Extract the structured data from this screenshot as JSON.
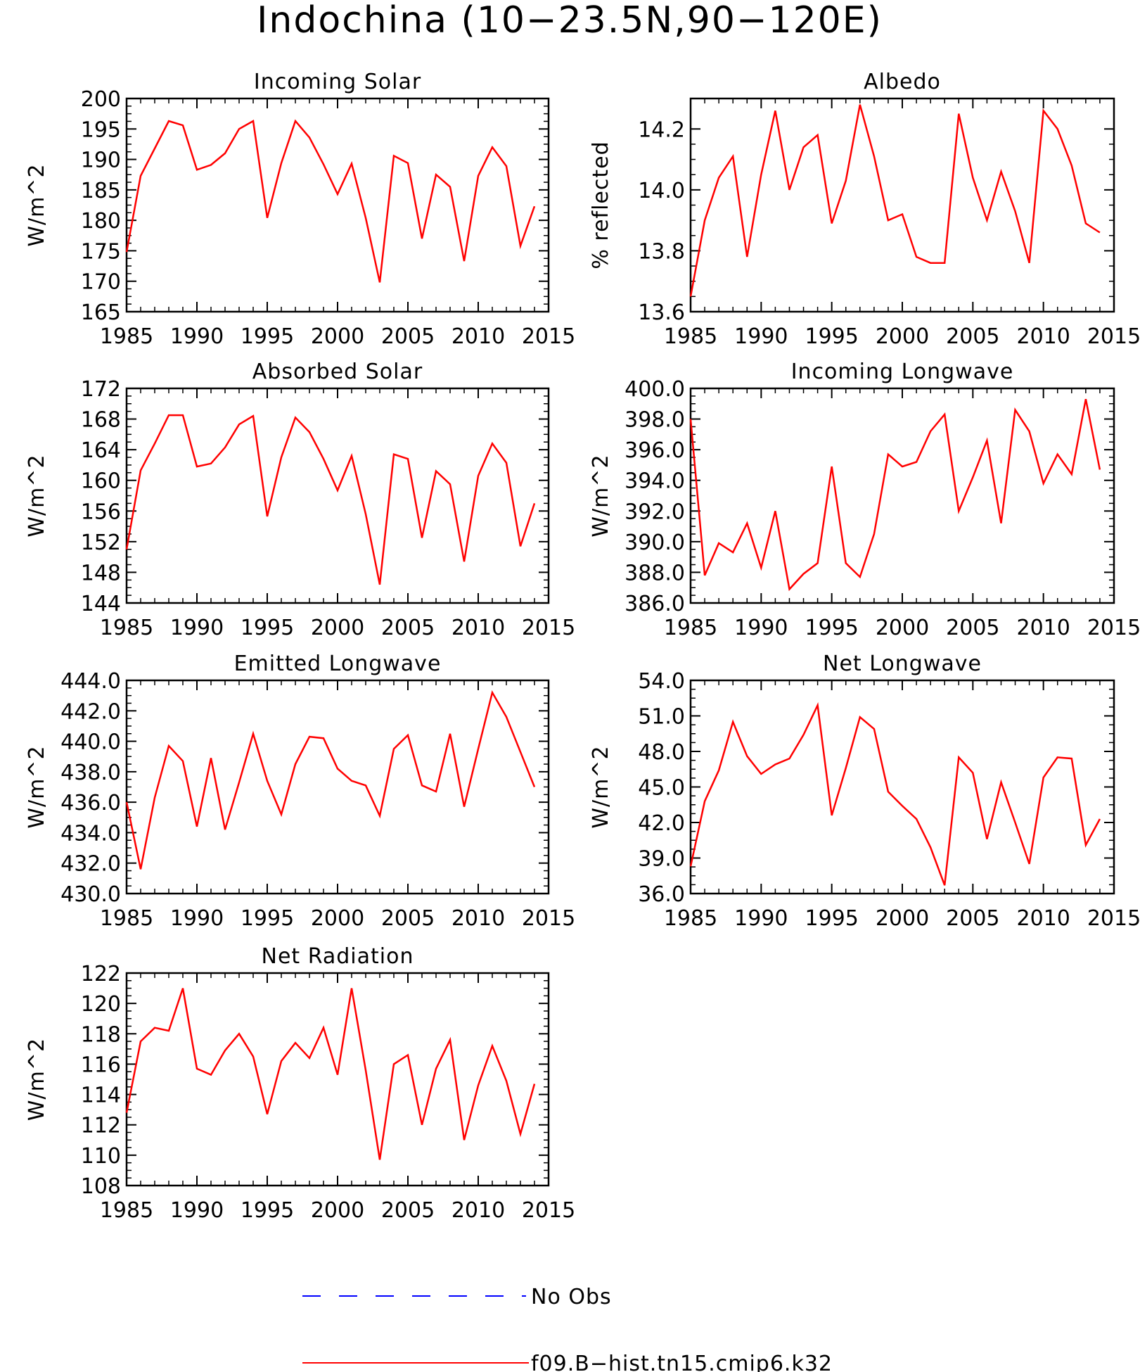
{
  "figure_title": "Indochina (10−23.5N,90−120E)",
  "legend": [
    {
      "label": "No Obs",
      "color": "#0000ff",
      "dashed": true
    },
    {
      "label": "f09.B−hist.tn15.cmip6.k32",
      "color": "#ff0000",
      "dashed": false
    }
  ],
  "chart_data": [
    {
      "type": "line",
      "title": "Incoming Solar",
      "ylabel": "W/m^2",
      "xlim": [
        1985,
        2015
      ],
      "ylim": [
        165,
        200
      ],
      "xticks": [
        1985,
        1990,
        1995,
        2000,
        2005,
        2010,
        2015
      ],
      "yticks": [
        165,
        170,
        175,
        180,
        185,
        190,
        195,
        200
      ],
      "ydecimals": 0,
      "series": [
        {
          "color": "#ff0000",
          "x": [
            1985,
            1986,
            1987,
            1988,
            1989,
            1990,
            1991,
            1992,
            1993,
            1994,
            1995,
            1996,
            1997,
            1998,
            1999,
            2000,
            2001,
            2002,
            2003,
            2004,
            2005,
            2006,
            2007,
            2008,
            2009,
            2010,
            2011,
            2012,
            2013,
            2014
          ],
          "values": [
            174.8,
            187.3,
            191.8,
            196.3,
            195.6,
            188.3,
            189.1,
            191.0,
            195.0,
            196.3,
            180.4,
            189.4,
            196.3,
            193.6,
            189.2,
            184.3,
            189.3,
            180.4,
            169.8,
            190.6,
            189.4,
            177.0,
            187.5,
            185.5,
            173.3,
            187.3,
            192.0,
            188.9,
            175.8,
            182.3
          ]
        }
      ]
    },
    {
      "type": "line",
      "title": "Albedo",
      "ylabel": "% reflected",
      "xlim": [
        1985,
        2015
      ],
      "ylim": [
        13.6,
        14.3
      ],
      "xticks": [
        1985,
        1990,
        1995,
        2000,
        2005,
        2010,
        2015
      ],
      "yticks": [
        13.6,
        13.8,
        14.0,
        14.2
      ],
      "ydecimals": 1,
      "series": [
        {
          "color": "#ff0000",
          "x": [
            1985,
            1986,
            1987,
            1988,
            1989,
            1990,
            1991,
            1992,
            1993,
            1994,
            1995,
            1996,
            1997,
            1998,
            1999,
            2000,
            2001,
            2002,
            2003,
            2004,
            2005,
            2006,
            2007,
            2008,
            2009,
            2010,
            2011,
            2012,
            2013,
            2014
          ],
          "values": [
            13.65,
            13.9,
            14.04,
            14.11,
            13.78,
            14.05,
            14.26,
            14.0,
            14.14,
            14.18,
            13.89,
            14.03,
            14.28,
            14.11,
            13.9,
            13.92,
            13.78,
            13.76,
            13.76,
            14.25,
            14.04,
            13.9,
            14.06,
            13.93,
            13.76,
            14.26,
            14.2,
            14.08,
            13.89,
            13.86
          ]
        }
      ]
    },
    {
      "type": "line",
      "title": "Absorbed Solar",
      "ylabel": "W/m^2",
      "xlim": [
        1985,
        2015
      ],
      "ylim": [
        144,
        172
      ],
      "xticks": [
        1985,
        1990,
        1995,
        2000,
        2005,
        2010,
        2015
      ],
      "yticks": [
        144,
        148,
        152,
        156,
        160,
        164,
        168,
        172
      ],
      "ydecimals": 0,
      "series": [
        {
          "color": "#ff0000",
          "x": [
            1985,
            1986,
            1987,
            1988,
            1989,
            1990,
            1991,
            1992,
            1993,
            1994,
            1995,
            1996,
            1997,
            1998,
            1999,
            2000,
            2001,
            2002,
            2003,
            2004,
            2005,
            2006,
            2007,
            2008,
            2009,
            2010,
            2011,
            2012,
            2013,
            2014
          ],
          "values": [
            151.0,
            161.3,
            164.8,
            168.5,
            168.5,
            161.8,
            162.2,
            164.3,
            167.3,
            168.4,
            155.3,
            163.0,
            168.2,
            166.3,
            162.8,
            158.7,
            163.2,
            155.6,
            146.4,
            163.4,
            162.8,
            152.5,
            161.2,
            159.5,
            149.4,
            160.6,
            164.8,
            162.3,
            151.4,
            157.0
          ]
        }
      ]
    },
    {
      "type": "line",
      "title": "Incoming Longwave",
      "ylabel": "W/m^2",
      "xlim": [
        1985,
        2015
      ],
      "ylim": [
        386,
        400
      ],
      "xticks": [
        1985,
        1990,
        1995,
        2000,
        2005,
        2010,
        2015
      ],
      "yticks": [
        386,
        388,
        390,
        392,
        394,
        396,
        398,
        400
      ],
      "ydecimals": 1,
      "series": [
        {
          "color": "#ff0000",
          "x": [
            1985,
            1986,
            1987,
            1988,
            1989,
            1990,
            1991,
            1992,
            1993,
            1994,
            1995,
            1996,
            1997,
            1998,
            1999,
            2000,
            2001,
            2002,
            2003,
            2004,
            2005,
            2006,
            2007,
            2008,
            2009,
            2010,
            2011,
            2012,
            2013,
            2014
          ],
          "values": [
            398.0,
            387.8,
            389.9,
            389.3,
            391.2,
            388.3,
            392.0,
            386.9,
            387.9,
            388.6,
            394.9,
            388.6,
            387.7,
            390.5,
            395.7,
            394.9,
            395.2,
            397.2,
            398.3,
            392.0,
            394.2,
            396.6,
            391.2,
            398.6,
            397.2,
            393.8,
            395.7,
            394.4,
            399.3,
            394.7
          ]
        }
      ]
    },
    {
      "type": "line",
      "title": "Emitted Longwave",
      "ylabel": "W/m^2",
      "xlim": [
        1985,
        2015
      ],
      "ylim": [
        430,
        444
      ],
      "xticks": [
        1985,
        1990,
        1995,
        2000,
        2005,
        2010,
        2015
      ],
      "yticks": [
        430,
        432,
        434,
        436,
        438,
        440,
        442,
        444
      ],
      "ydecimals": 1,
      "series": [
        {
          "color": "#ff0000",
          "x": [
            1985,
            1986,
            1987,
            1988,
            1989,
            1990,
            1991,
            1992,
            1993,
            1994,
            1995,
            1996,
            1997,
            1998,
            1999,
            2000,
            2001,
            2002,
            2003,
            2004,
            2005,
            2006,
            2007,
            2008,
            2009,
            2010,
            2011,
            2012,
            2013,
            2014
          ],
          "values": [
            436.0,
            431.6,
            436.3,
            439.7,
            438.7,
            434.4,
            438.9,
            434.2,
            437.3,
            440.5,
            437.4,
            435.2,
            438.5,
            440.3,
            440.2,
            438.2,
            437.4,
            437.1,
            435.1,
            439.5,
            440.4,
            437.1,
            436.7,
            440.5,
            435.7,
            439.5,
            443.2,
            441.6,
            439.3,
            437.0
          ]
        }
      ]
    },
    {
      "type": "line",
      "title": "Net Longwave",
      "ylabel": "W/m^2",
      "xlim": [
        1985,
        2015
      ],
      "ylim": [
        36,
        54
      ],
      "xticks": [
        1985,
        1990,
        1995,
        2000,
        2005,
        2010,
        2015
      ],
      "yticks": [
        36,
        39,
        42,
        45,
        48,
        51,
        54
      ],
      "ydecimals": 1,
      "series": [
        {
          "color": "#ff0000",
          "x": [
            1985,
            1986,
            1987,
            1988,
            1989,
            1990,
            1991,
            1992,
            1993,
            1994,
            1995,
            1996,
            1997,
            1998,
            1999,
            2000,
            2001,
            2002,
            2003,
            2004,
            2005,
            2006,
            2007,
            2008,
            2009,
            2010,
            2011,
            2012,
            2013,
            2014
          ],
          "values": [
            38.3,
            43.8,
            46.4,
            50.5,
            47.6,
            46.1,
            46.9,
            47.4,
            49.4,
            51.9,
            42.6,
            46.6,
            50.9,
            49.9,
            44.6,
            43.4,
            42.3,
            39.9,
            36.7,
            47.5,
            46.2,
            40.6,
            45.4,
            42.0,
            38.5,
            45.8,
            47.5,
            47.4,
            40.1,
            42.3
          ]
        }
      ]
    },
    {
      "type": "line",
      "title": "Net Radiation",
      "ylabel": "W/m^2",
      "xlim": [
        1985,
        2015
      ],
      "ylim": [
        108,
        122
      ],
      "xticks": [
        1985,
        1990,
        1995,
        2000,
        2005,
        2010,
        2015
      ],
      "yticks": [
        108,
        110,
        112,
        114,
        116,
        118,
        120,
        122
      ],
      "ydecimals": 0,
      "series": [
        {
          "color": "#ff0000",
          "x": [
            1985,
            1986,
            1987,
            1988,
            1989,
            1990,
            1991,
            1992,
            1993,
            1994,
            1995,
            1996,
            1997,
            1998,
            1999,
            2000,
            2001,
            2002,
            2003,
            2004,
            2005,
            2006,
            2007,
            2008,
            2009,
            2010,
            2011,
            2012,
            2013,
            2014
          ],
          "values": [
            112.8,
            117.5,
            118.4,
            118.2,
            121.0,
            115.7,
            115.3,
            116.9,
            118.0,
            116.5,
            112.7,
            116.2,
            117.4,
            116.4,
            118.4,
            115.3,
            121.0,
            115.6,
            109.7,
            116.0,
            116.6,
            112.0,
            115.7,
            117.6,
            111.0,
            114.6,
            117.2,
            114.9,
            111.4,
            114.7
          ]
        }
      ]
    }
  ]
}
